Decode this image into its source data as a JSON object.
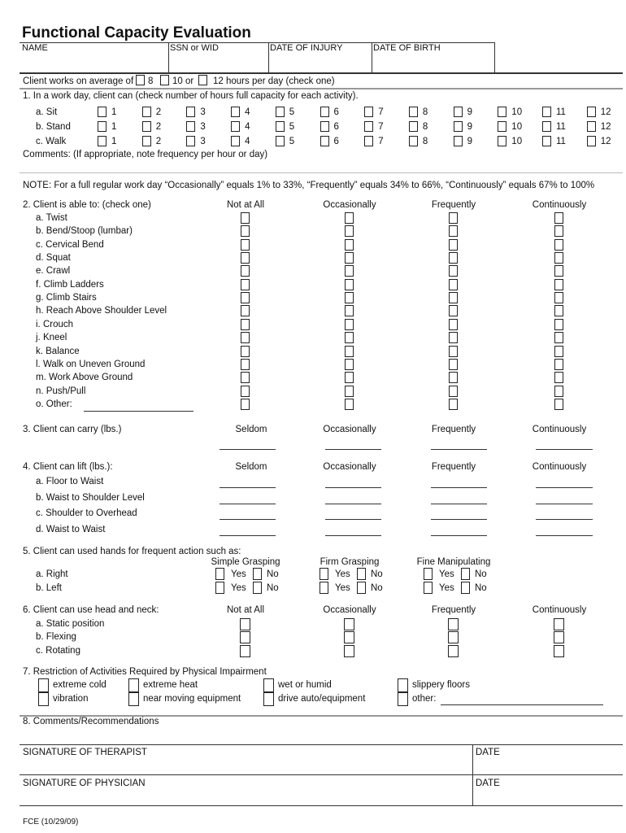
{
  "title": "Functional Capacity Evaluation",
  "header_fields": [
    "NAME",
    "SSN or WID",
    "DATE OF INJURY",
    "DATE OF BIRTH"
  ],
  "hours_line": {
    "prefix": "Client works on average of",
    "options": [
      "8",
      "10 or",
      "12 hours per day (check one)"
    ]
  },
  "q1": {
    "label": "1.  In a work day, client can (check number of hours full capacity for each activity).",
    "rows": [
      "a.  Sit",
      "b.  Stand",
      "c.  Walk"
    ],
    "hours": [
      "1",
      "2",
      "3",
      "4",
      "5",
      "6",
      "7",
      "8",
      "9",
      "10",
      "11",
      "12"
    ],
    "comments": "Comments:  (If appropriate, note frequency per hour or day)"
  },
  "note": "NOTE:  For a full regular work day “Occasionally” equals 1% to 33%, “Frequently” equals 34% to 66%, “Continuously” equals 67% to 100%",
  "q2": {
    "label": "2.  Client is able to:  (check one)",
    "columns": [
      "Not at All",
      "Occasionally",
      "Frequently",
      "Continuously"
    ],
    "rows": [
      "a.  Twist",
      "b.  Bend/Stoop (lumbar)",
      "c.  Cervical Bend",
      "d.  Squat",
      "e.  Crawl",
      "f.   Climb Ladders",
      "g.  Climb Stairs",
      "h.  Reach Above Shoulder Level",
      "i.   Crouch",
      "j.   Kneel",
      "k.  Balance",
      "l.   Walk on Uneven Ground",
      "m. Work Above Ground",
      "n.  Push/Pull",
      "o.  Other:"
    ]
  },
  "q3": {
    "label": "3.  Client can carry (lbs.)",
    "columns": [
      "Seldom",
      "Occasionally",
      "Frequently",
      "Continuously"
    ]
  },
  "q4": {
    "label": "4.  Client can lift (lbs.):",
    "columns": [
      "Seldom",
      "Occasionally",
      "Frequently",
      "Continuously"
    ],
    "rows": [
      "a.  Floor to Waist",
      "b.  Waist to Shoulder Level",
      "c.  Shoulder to Overhead",
      "d.  Waist to Waist"
    ]
  },
  "q5": {
    "label": "5.  Client can used hands for frequent action such as:",
    "columns": [
      "Simple Grasping",
      "Firm Grasping",
      "Fine Manipulating"
    ],
    "rows": [
      "a.  Right",
      "b.  Left"
    ],
    "yes": "Yes",
    "no": "No"
  },
  "q6": {
    "label": "6.  Client can use head and neck:",
    "columns": [
      "Not at All",
      "Occasionally",
      "Frequently",
      "Continuously"
    ],
    "rows": [
      "a.  Static position",
      "b.  Flexing",
      "c.  Rotating"
    ]
  },
  "q7": {
    "label": "7.  Restriction of Activities Required by Physical Impairment",
    "options": [
      [
        "extreme cold",
        "extreme heat",
        "wet or humid",
        "slippery floors"
      ],
      [
        "vibration",
        "near moving equipment",
        "drive auto/equipment",
        "other:"
      ]
    ]
  },
  "q8": {
    "label": "8.  Comments/Recommendations"
  },
  "signatures": [
    {
      "label": "SIGNATURE OF THERAPIST",
      "date": "DATE"
    },
    {
      "label": "SIGNATURE OF PHYSICIAN",
      "date": "DATE"
    }
  ],
  "footer": "FCE (10/29/09)"
}
